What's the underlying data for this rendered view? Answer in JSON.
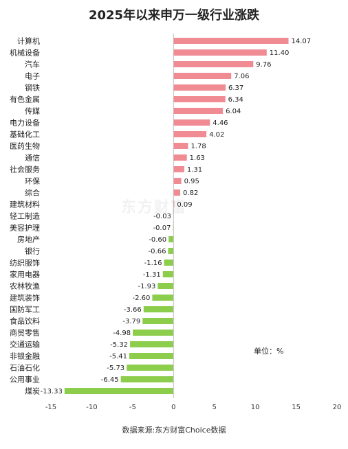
{
  "chart_data": {
    "type": "bar",
    "orientation": "horizontal",
    "title": "2025年以来申万一级行业涨跌",
    "categories": [
      "计算机",
      "机械设备",
      "汽车",
      "电子",
      "钢铁",
      "有色金属",
      "传媒",
      "电力设备",
      "基础化工",
      "医药生物",
      "通信",
      "社会服务",
      "环保",
      "综合",
      "建筑材料",
      "轻工制造",
      "美容护理",
      "房地产",
      "银行",
      "纺织服饰",
      "家用电器",
      "农林牧渔",
      "建筑装饰",
      "国防军工",
      "食品饮料",
      "商贸零售",
      "交通运输",
      "非银金融",
      "石油石化",
      "公用事业",
      "煤炭"
    ],
    "values": [
      14.07,
      11.4,
      9.76,
      7.06,
      6.37,
      6.34,
      6.04,
      4.46,
      4.02,
      1.78,
      1.63,
      1.31,
      0.95,
      0.82,
      0.09,
      -0.03,
      -0.07,
      -0.6,
      -0.66,
      -1.16,
      -1.31,
      -1.93,
      -2.6,
      -3.66,
      -3.79,
      -4.98,
      -5.32,
      -5.41,
      -5.73,
      -6.45,
      -13.33
    ],
    "value_labels": [
      "14.07",
      "11.40",
      "9.76",
      "7.06",
      "6.37",
      "6.34",
      "6.04",
      "4.46",
      "4.02",
      "1.78",
      "1.63",
      "1.31",
      "0.95",
      "0.82",
      "0.09",
      "-0.03",
      "-0.07",
      "-0.60",
      "-0.66",
      "-1.16",
      "-1.31",
      "-1.93",
      "-2.60",
      "-3.66",
      "-3.79",
      "-4.98",
      "-5.32",
      "-5.41",
      "-5.73",
      "-6.45",
      "-13.33"
    ],
    "xlim": [
      -15,
      20
    ],
    "xticks": [
      "-15",
      "-10",
      "-5",
      "0",
      "5",
      "10",
      "15",
      "20"
    ],
    "unit_label": "单位：%",
    "grid": false,
    "colors": {
      "positive": "#f08b94",
      "negative": "#8ccd4c"
    }
  },
  "source": "数据来源:东方财富Choice数据",
  "watermark": "东方财富"
}
